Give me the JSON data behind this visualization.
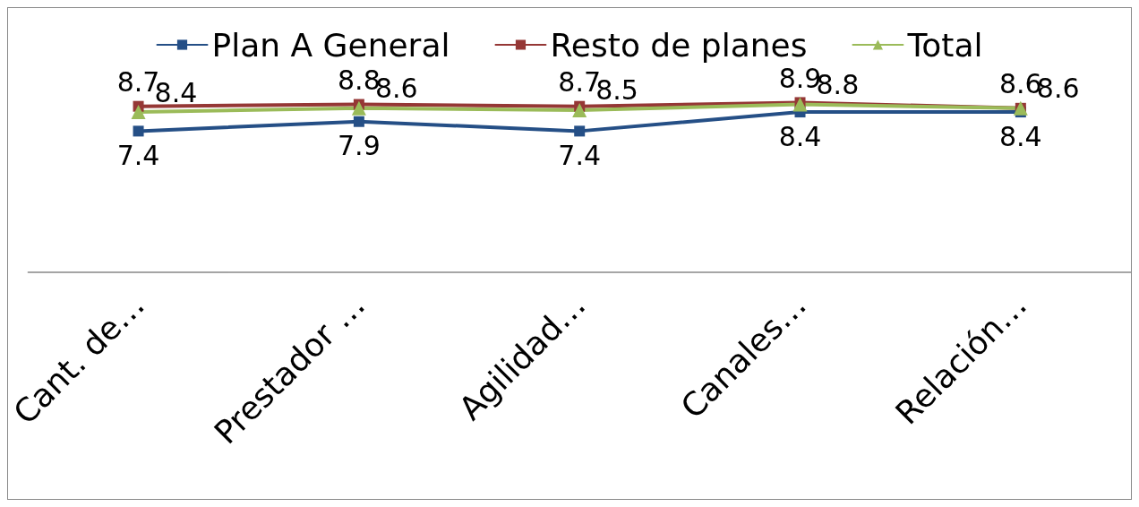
{
  "chart_data": {
    "type": "line",
    "categories": [
      "Cant. de…",
      "Prestador …",
      "Agilidad…",
      "Canales…",
      "Relación…"
    ],
    "series": [
      {
        "name": "Plan A General",
        "color": "#254f86",
        "marker": "square",
        "values": [
          7.4,
          7.9,
          7.4,
          8.4,
          8.4
        ]
      },
      {
        "name": "Resto de planes",
        "color": "#953735",
        "marker": "square",
        "values": [
          8.7,
          8.8,
          8.7,
          8.9,
          8.6
        ]
      },
      {
        "name": "Total",
        "color": "#9bbb59",
        "marker": "triangle",
        "values": [
          8.4,
          8.6,
          8.5,
          8.8,
          8.6
        ]
      }
    ],
    "data_labels": true,
    "legend": "top",
    "grid": false,
    "line_style": "solid"
  }
}
